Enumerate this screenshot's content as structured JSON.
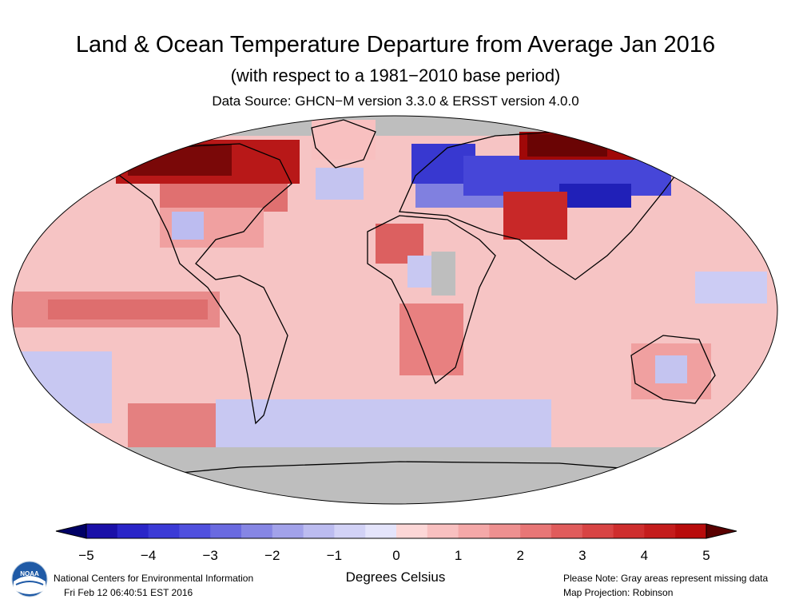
{
  "title": "Land & Ocean Temperature Departure from Average Jan 2016",
  "subtitle": "(with respect to a 1981−2010 base period)",
  "source": "Data Source: GHCN−M version 3.3.0 & ERSST version 4.0.0",
  "colorbar": {
    "ticks": [
      "−5",
      "−4",
      "−3",
      "−2",
      "−1",
      "0",
      "1",
      "2",
      "3",
      "4",
      "5"
    ],
    "units": "Degrees Celsius",
    "range": [
      -5,
      5
    ],
    "colors": [
      "#1a10a8",
      "#2a25c8",
      "#3b3ad6",
      "#5050de",
      "#6a6ae0",
      "#8686e4",
      "#a2a2ea",
      "#bcbcf0",
      "#d2d2f6",
      "#e4e4fb",
      "#fcd7d7",
      "#f8c0c0",
      "#f4a8a8",
      "#ee9090",
      "#e87676",
      "#e05c5c",
      "#d84444",
      "#ce2e2e",
      "#c41c1c",
      "#b80c0c"
    ],
    "end_low": "#000066",
    "end_high": "#5a0000",
    "missing_color": "#bebebe"
  },
  "footer": {
    "org": "National Centers for Environmental Information",
    "timestamp": "Fri Feb 12 06:40:51 EST 2016",
    "note": "Please Note: Gray areas represent missing data",
    "projection": "Map Projection: Robinson"
  },
  "logo": {
    "text": "NOAA",
    "color": "#1f5aa6"
  }
}
